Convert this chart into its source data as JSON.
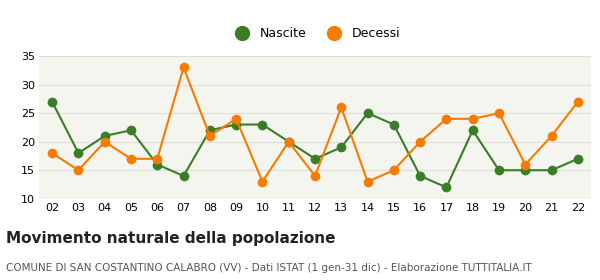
{
  "years": [
    "02",
    "03",
    "04",
    "05",
    "06",
    "07",
    "08",
    "09",
    "10",
    "11",
    "12",
    "13",
    "14",
    "15",
    "16",
    "17",
    "18",
    "19",
    "20",
    "21",
    "22"
  ],
  "nascite": [
    27,
    18,
    21,
    22,
    16,
    14,
    22,
    23,
    23,
    20,
    17,
    19,
    25,
    23,
    14,
    12,
    22,
    15,
    15,
    15,
    17
  ],
  "decessi": [
    18,
    15,
    20,
    17,
    17,
    33,
    21,
    24,
    13,
    20,
    14,
    26,
    13,
    15,
    20,
    24,
    24,
    25,
    16,
    21,
    27
  ],
  "nascite_color": "#3a7d27",
  "decessi_color": "#f57c00",
  "ylim": [
    10,
    35
  ],
  "yticks": [
    10,
    15,
    20,
    25,
    30,
    35
  ],
  "title": "Movimento naturale della popolazione",
  "subtitle": "COMUNE DI SAN COSTANTINO CALABRO (VV) - Dati ISTAT (1 gen-31 dic) - Elaborazione TUTTITALIA.IT",
  "legend_nascite": "Nascite",
  "legend_decessi": "Decessi",
  "background_color": "#ffffff",
  "plot_bg_color": "#f5f5f0",
  "grid_color": "#dddddd",
  "title_fontsize": 11,
  "subtitle_fontsize": 7.5,
  "marker_size": 7,
  "tick_fontsize": 8
}
